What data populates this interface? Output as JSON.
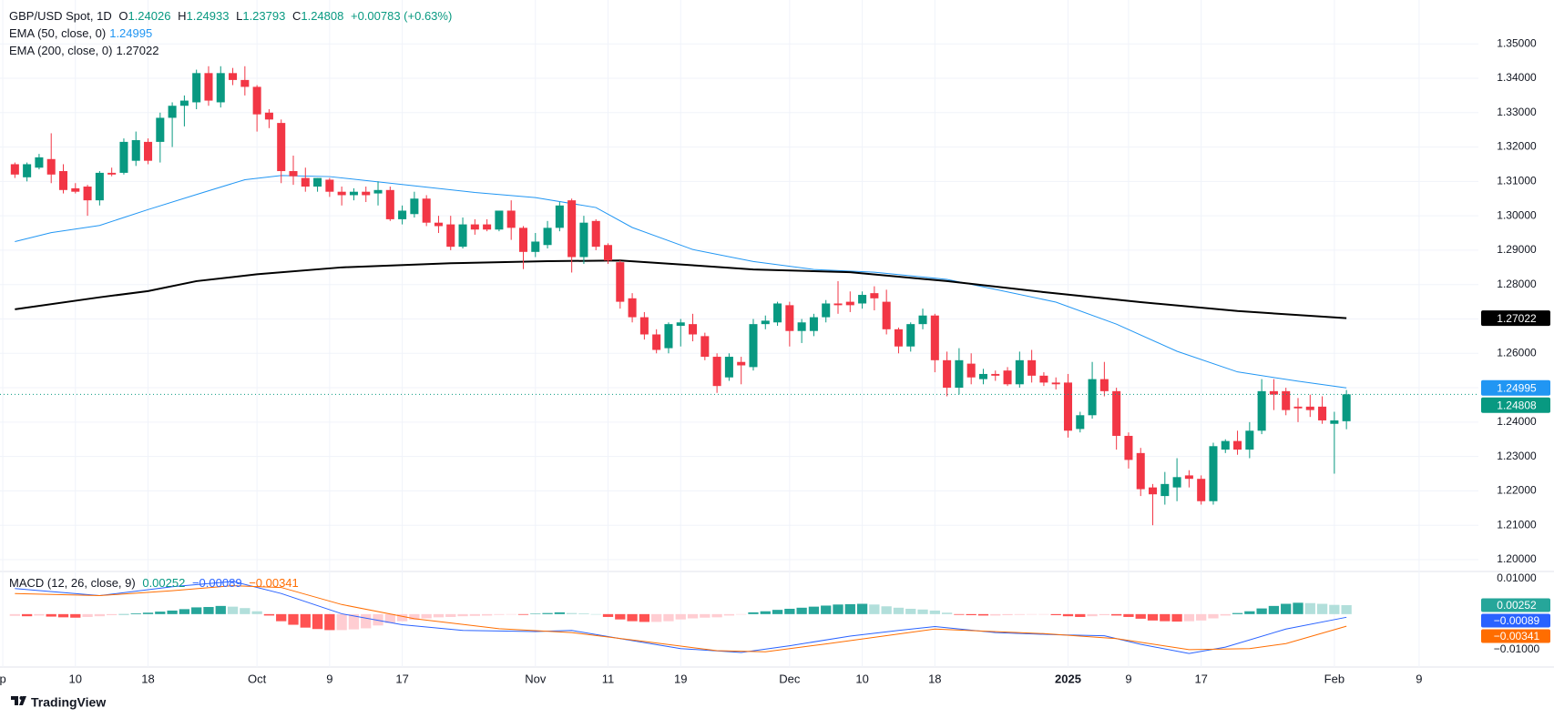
{
  "chart_data": [
    {
      "type": "candlestick",
      "title": "GBP/USD Spot, 1D",
      "ohlc_letters": [
        "O",
        "H",
        "L",
        "C"
      ],
      "change": "+0.00783 (+0.63%)",
      "xlim": [
        -1.23,
        120.9
      ],
      "ylim": [
        1.19682,
        1.36276
      ],
      "grid": true,
      "up_color": "#089981",
      "down_color": "#f23645",
      "last_price_line": true,
      "xticks": [
        {
          "value": -1,
          "label": "p"
        },
        {
          "value": 5,
          "label": "10"
        },
        {
          "value": 11,
          "label": "18"
        },
        {
          "value": 20,
          "label": "Oct"
        },
        {
          "value": 26,
          "label": "9"
        },
        {
          "value": 32,
          "label": "17"
        },
        {
          "value": 43,
          "label": "Nov"
        },
        {
          "value": 49,
          "label": "11"
        },
        {
          "value": 55,
          "label": "19"
        },
        {
          "value": 64,
          "label": "Dec"
        },
        {
          "value": 70,
          "label": "10"
        },
        {
          "value": 76,
          "label": "18"
        },
        {
          "value": 87,
          "label": "2025"
        },
        {
          "value": 92,
          "label": "9"
        },
        {
          "value": 98,
          "label": "17"
        },
        {
          "value": 109,
          "label": "Feb"
        },
        {
          "value": 116,
          "label": "9"
        }
      ],
      "yticks": [
        {
          "value": 1.2,
          "label": "1.20000"
        },
        {
          "value": 1.21,
          "label": "1.21000"
        },
        {
          "value": 1.22,
          "label": "1.22000"
        },
        {
          "value": 1.23,
          "label": "1.23000"
        },
        {
          "value": 1.24,
          "label": "1.24000"
        },
        {
          "value": 1.25,
          "label": "1.25000"
        },
        {
          "value": 1.26,
          "label": "1.26000"
        },
        {
          "value": 1.27,
          "label": "1.27000"
        },
        {
          "value": 1.28,
          "label": "1.28000"
        },
        {
          "value": 1.29,
          "label": "1.29000"
        },
        {
          "value": 1.3,
          "label": "1.30000"
        },
        {
          "value": 1.31,
          "label": "1.31000"
        },
        {
          "value": 1.32,
          "label": "1.32000"
        },
        {
          "value": 1.33,
          "label": "1.33000"
        },
        {
          "value": 1.34,
          "label": "1.34000"
        },
        {
          "value": 1.35,
          "label": "1.35000"
        }
      ],
      "open": [
        1.315,
        1.3112,
        1.314,
        1.3165,
        1.313,
        1.308,
        1.3085,
        1.3045,
        1.3125,
        1.3125,
        1.316,
        1.3215,
        1.3215,
        1.3285,
        1.332,
        1.333,
        1.3415,
        1.333,
        1.3415,
        1.3395,
        1.3375,
        1.33,
        1.327,
        1.313,
        1.311,
        1.3085,
        1.3105,
        1.307,
        1.306,
        1.307,
        1.3065,
        1.3075,
        1.299,
        1.3005,
        1.305,
        1.298,
        1.2975,
        1.291,
        1.2975,
        1.2975,
        1.296,
        1.3015,
        1.2965,
        1.2895,
        1.2915,
        1.2965,
        1.3045,
        1.288,
        1.2985,
        1.2915,
        1.2865,
        1.276,
        1.2705,
        1.2655,
        1.2615,
        1.268,
        1.2685,
        1.265,
        1.259,
        1.253,
        1.2575,
        1.256,
        1.2685,
        1.269,
        1.274,
        1.2665,
        1.2665,
        1.2705,
        1.2745,
        1.275,
        1.2745,
        1.2775,
        1.275,
        1.267,
        1.262,
        1.2685,
        1.271,
        1.258,
        1.25,
        1.257,
        1.2525,
        1.254,
        1.255,
        1.251,
        1.258,
        1.2535,
        1.2515,
        1.2515,
        1.238,
        1.242,
        1.2525,
        1.249,
        1.236,
        1.231,
        1.221,
        1.2185,
        1.221,
        1.2245,
        1.2235,
        1.217,
        1.232,
        1.2345,
        1.232,
        1.2375,
        1.249,
        1.249,
        1.2445,
        1.2445,
        1.2445,
        1.2395,
        1.24026
      ],
      "high": [
        1.3155,
        1.3155,
        1.318,
        1.324,
        1.315,
        1.3095,
        1.309,
        1.313,
        1.314,
        1.3225,
        1.3245,
        1.3225,
        1.33,
        1.333,
        1.335,
        1.3425,
        1.3435,
        1.3435,
        1.343,
        1.3435,
        1.338,
        1.331,
        1.328,
        1.3175,
        1.314,
        1.311,
        1.311,
        1.3085,
        1.308,
        1.3085,
        1.31,
        1.3085,
        1.303,
        1.307,
        1.306,
        1.3,
        1.3,
        1.2995,
        1.299,
        1.299,
        1.301,
        1.3045,
        1.297,
        1.295,
        1.2985,
        1.304,
        1.305,
        1.3,
        1.299,
        1.292,
        1.287,
        1.2775,
        1.272,
        1.267,
        1.269,
        1.27,
        1.2715,
        1.266,
        1.26,
        1.26,
        1.259,
        1.27,
        1.271,
        1.275,
        1.275,
        1.27,
        1.2715,
        1.2755,
        1.281,
        1.278,
        1.278,
        1.2795,
        1.2785,
        1.2675,
        1.269,
        1.273,
        1.2715,
        1.2605,
        1.2615,
        1.26,
        1.2555,
        1.255,
        1.256,
        1.2605,
        1.261,
        1.2545,
        1.253,
        1.254,
        1.243,
        1.2575,
        1.2575,
        1.25,
        1.237,
        1.2325,
        1.222,
        1.2255,
        1.2295,
        1.226,
        1.2245,
        1.234,
        1.235,
        1.2375,
        1.24,
        1.2525,
        1.2525,
        1.25,
        1.247,
        1.248,
        1.2475,
        1.243,
        1.24933
      ],
      "low": [
        1.311,
        1.31,
        1.3135,
        1.3095,
        1.3065,
        1.3065,
        1.3,
        1.303,
        1.3115,
        1.312,
        1.3145,
        1.315,
        1.3155,
        1.32,
        1.326,
        1.331,
        1.332,
        1.3315,
        1.338,
        1.335,
        1.3245,
        1.3255,
        1.3095,
        1.309,
        1.307,
        1.307,
        1.3055,
        1.303,
        1.3045,
        1.304,
        1.303,
        1.2985,
        1.2975,
        1.2995,
        1.297,
        1.295,
        1.29,
        1.2905,
        1.2945,
        1.2955,
        1.2955,
        1.293,
        1.2845,
        1.288,
        1.2905,
        1.2955,
        1.2835,
        1.286,
        1.29,
        1.286,
        1.273,
        1.269,
        1.264,
        1.26,
        1.26,
        1.262,
        1.2635,
        1.258,
        1.2485,
        1.252,
        1.251,
        1.255,
        1.267,
        1.268,
        1.262,
        1.263,
        1.265,
        1.269,
        1.2715,
        1.272,
        1.273,
        1.2725,
        1.2655,
        1.26,
        1.2605,
        1.267,
        1.2545,
        1.2475,
        1.248,
        1.251,
        1.251,
        1.252,
        1.2505,
        1.25,
        1.2515,
        1.2505,
        1.2495,
        1.2355,
        1.237,
        1.241,
        1.2475,
        1.232,
        1.2265,
        1.2185,
        1.21,
        1.216,
        1.217,
        1.221,
        1.216,
        1.216,
        1.231,
        1.2305,
        1.2295,
        1.2365,
        1.2435,
        1.242,
        1.24,
        1.2415,
        1.2395,
        1.225,
        1.23793
      ],
      "close": [
        1.312,
        1.315,
        1.317,
        1.312,
        1.3075,
        1.307,
        1.3045,
        1.3125,
        1.312,
        1.3215,
        1.322,
        1.316,
        1.3285,
        1.332,
        1.3335,
        1.3415,
        1.3335,
        1.3415,
        1.3395,
        1.3375,
        1.3295,
        1.328,
        1.313,
        1.3115,
        1.3085,
        1.311,
        1.307,
        1.306,
        1.307,
        1.306,
        1.3075,
        1.299,
        1.3015,
        1.305,
        1.298,
        1.297,
        1.291,
        1.2975,
        1.296,
        1.296,
        1.3015,
        1.2965,
        1.2895,
        1.2925,
        1.2965,
        1.303,
        1.288,
        1.298,
        1.291,
        1.287,
        1.275,
        1.2705,
        1.2655,
        1.261,
        1.2685,
        1.269,
        1.2655,
        1.259,
        1.2505,
        1.259,
        1.2565,
        1.2685,
        1.2695,
        1.2745,
        1.2665,
        1.269,
        1.2705,
        1.2745,
        1.274,
        1.274,
        1.277,
        1.276,
        1.267,
        1.262,
        1.2685,
        1.271,
        1.258,
        1.25,
        1.258,
        1.253,
        1.254,
        1.2535,
        1.251,
        1.258,
        1.2535,
        1.2515,
        1.251,
        1.2375,
        1.242,
        1.2525,
        1.249,
        1.236,
        1.229,
        1.2205,
        1.219,
        1.222,
        1.224,
        1.2235,
        1.217,
        1.233,
        1.2345,
        1.232,
        1.2375,
        1.249,
        1.248,
        1.2435,
        1.244,
        1.2435,
        1.2405,
        1.2405,
        1.24808
      ],
      "overlays": [
        {
          "name": "EMA (50, close, 0)",
          "color": "#2196f3",
          "line_width": 1,
          "x": [
            0,
            3,
            7,
            11,
            15,
            19,
            22,
            26,
            32,
            38,
            43,
            48,
            51,
            56,
            61,
            66,
            71,
            77,
            81,
            86,
            91,
            96,
            101,
            106,
            110
          ],
          "values": [
            1.2925,
            1.2951,
            1.2972,
            1.3018,
            1.3062,
            1.3105,
            1.3117,
            1.3114,
            1.3091,
            1.3068,
            1.3053,
            1.3024,
            1.2966,
            1.2902,
            1.2867,
            1.2844,
            1.2836,
            1.2815,
            1.2786,
            1.2749,
            1.2685,
            1.2606,
            1.2546,
            1.2519,
            1.24995
          ]
        },
        {
          "name": "EMA (200, close, 0)",
          "color": "#000000",
          "line_width": 2,
          "x": [
            0,
            7,
            11,
            15,
            20,
            27,
            36,
            44,
            50,
            56,
            61,
            69,
            77,
            85,
            93,
            101,
            110
          ],
          "values": [
            1.2728,
            1.2763,
            1.2781,
            1.281,
            1.283,
            1.285,
            1.2862,
            1.2868,
            1.287,
            1.2856,
            1.2844,
            1.2836,
            1.281,
            1.2778,
            1.2749,
            1.2723,
            1.27022
          ]
        }
      ]
    },
    {
      "type": "macd",
      "title": "MACD (12, 26, close, 9)",
      "ylim": [
        -0.0149,
        0.012
      ],
      "yticks": [
        {
          "value": 0.01,
          "label": "0.01000"
        },
        {
          "value": -0.01,
          "label": "−0.01000"
        }
      ],
      "last_labels": [
        "0.00252",
        "−0.00089",
        "−0.00341"
      ],
      "histogram": {
        "colors": {
          "rise_pos": "#26a69a",
          "fall_pos": "#b2dfdb",
          "fall_neg": "#ff5252",
          "rise_neg": "#ffcdd2"
        },
        "values": [
          -0.0005,
          -0.0006,
          -0.0004,
          -0.0007,
          -0.0009,
          -0.001,
          -0.0008,
          -0.0006,
          -0.0003,
          0.0,
          0.0002,
          0.0004,
          0.0007,
          0.001,
          0.0014,
          0.0019,
          0.002,
          0.0023,
          0.0021,
          0.0017,
          0.0008,
          -0.0004,
          -0.002,
          -0.003,
          -0.0038,
          -0.0042,
          -0.0045,
          -0.0045,
          -0.0043,
          -0.004,
          -0.0032,
          -0.0025,
          -0.002,
          -0.0016,
          -0.0012,
          -0.0009,
          -0.0008,
          -0.0006,
          -0.0005,
          -0.0004,
          -0.0002,
          -0.0001,
          -0.0002,
          0.0001,
          0.0003,
          0.0005,
          0.0003,
          0.0002,
          0.0,
          -0.0008,
          -0.0015,
          -0.002,
          -0.0022,
          -0.0022,
          -0.002,
          -0.0015,
          -0.0012,
          -0.001,
          -0.0009,
          -0.0004,
          -0.0001,
          0.0005,
          0.0008,
          0.0012,
          0.0015,
          0.0018,
          0.0021,
          0.0024,
          0.0027,
          0.0028,
          0.0029,
          0.0027,
          0.0022,
          0.0018,
          0.0015,
          0.0013,
          0.001,
          0.0004,
          -0.0002,
          -0.0003,
          -0.0004,
          -0.0004,
          -0.0003,
          -0.0002,
          -0.0001,
          -0.0001,
          -0.0003,
          -0.0006,
          -0.0008,
          -0.0006,
          -0.0003,
          -0.0004,
          -0.0008,
          -0.0013,
          -0.0018,
          -0.002,
          -0.0021,
          -0.002,
          -0.0018,
          -0.0012,
          -0.0004,
          0.0003,
          0.0008,
          0.0016,
          0.0023,
          0.0029,
          0.0032,
          0.0031,
          0.0029,
          0.0026,
          0.00252
        ]
      },
      "series": [
        {
          "color": "#2962ff",
          "x": [
            0,
            7,
            13,
            18,
            22,
            27,
            32,
            37,
            43,
            46,
            50,
            55,
            60,
            64,
            69,
            73,
            76,
            81,
            86,
            90,
            93,
            97,
            100,
            105,
            110
          ],
          "values": [
            0.0072,
            0.0052,
            0.0077,
            0.0092,
            0.0058,
            0.0001,
            -0.003,
            -0.0046,
            -0.0049,
            -0.0046,
            -0.0069,
            -0.0097,
            -0.0108,
            -0.0089,
            -0.0062,
            -0.0046,
            -0.0035,
            -0.0052,
            -0.0058,
            -0.0061,
            -0.0085,
            -0.0111,
            -0.0093,
            -0.0042,
            -0.00089
          ]
        },
        {
          "color": "#ff6d00",
          "x": [
            0,
            7,
            13,
            18,
            22,
            27,
            33,
            40,
            46,
            52,
            58,
            62,
            67,
            76,
            85,
            91,
            97,
            102,
            105,
            110
          ],
          "values": [
            0.0058,
            0.0052,
            0.0066,
            0.008,
            0.0075,
            0.0027,
            -0.0013,
            -0.0041,
            -0.0052,
            -0.0077,
            -0.0103,
            -0.0106,
            -0.0084,
            -0.0042,
            -0.0055,
            -0.0069,
            -0.01,
            -0.0097,
            -0.0083,
            -0.00341
          ]
        }
      ]
    }
  ],
  "brand": "TradingView"
}
